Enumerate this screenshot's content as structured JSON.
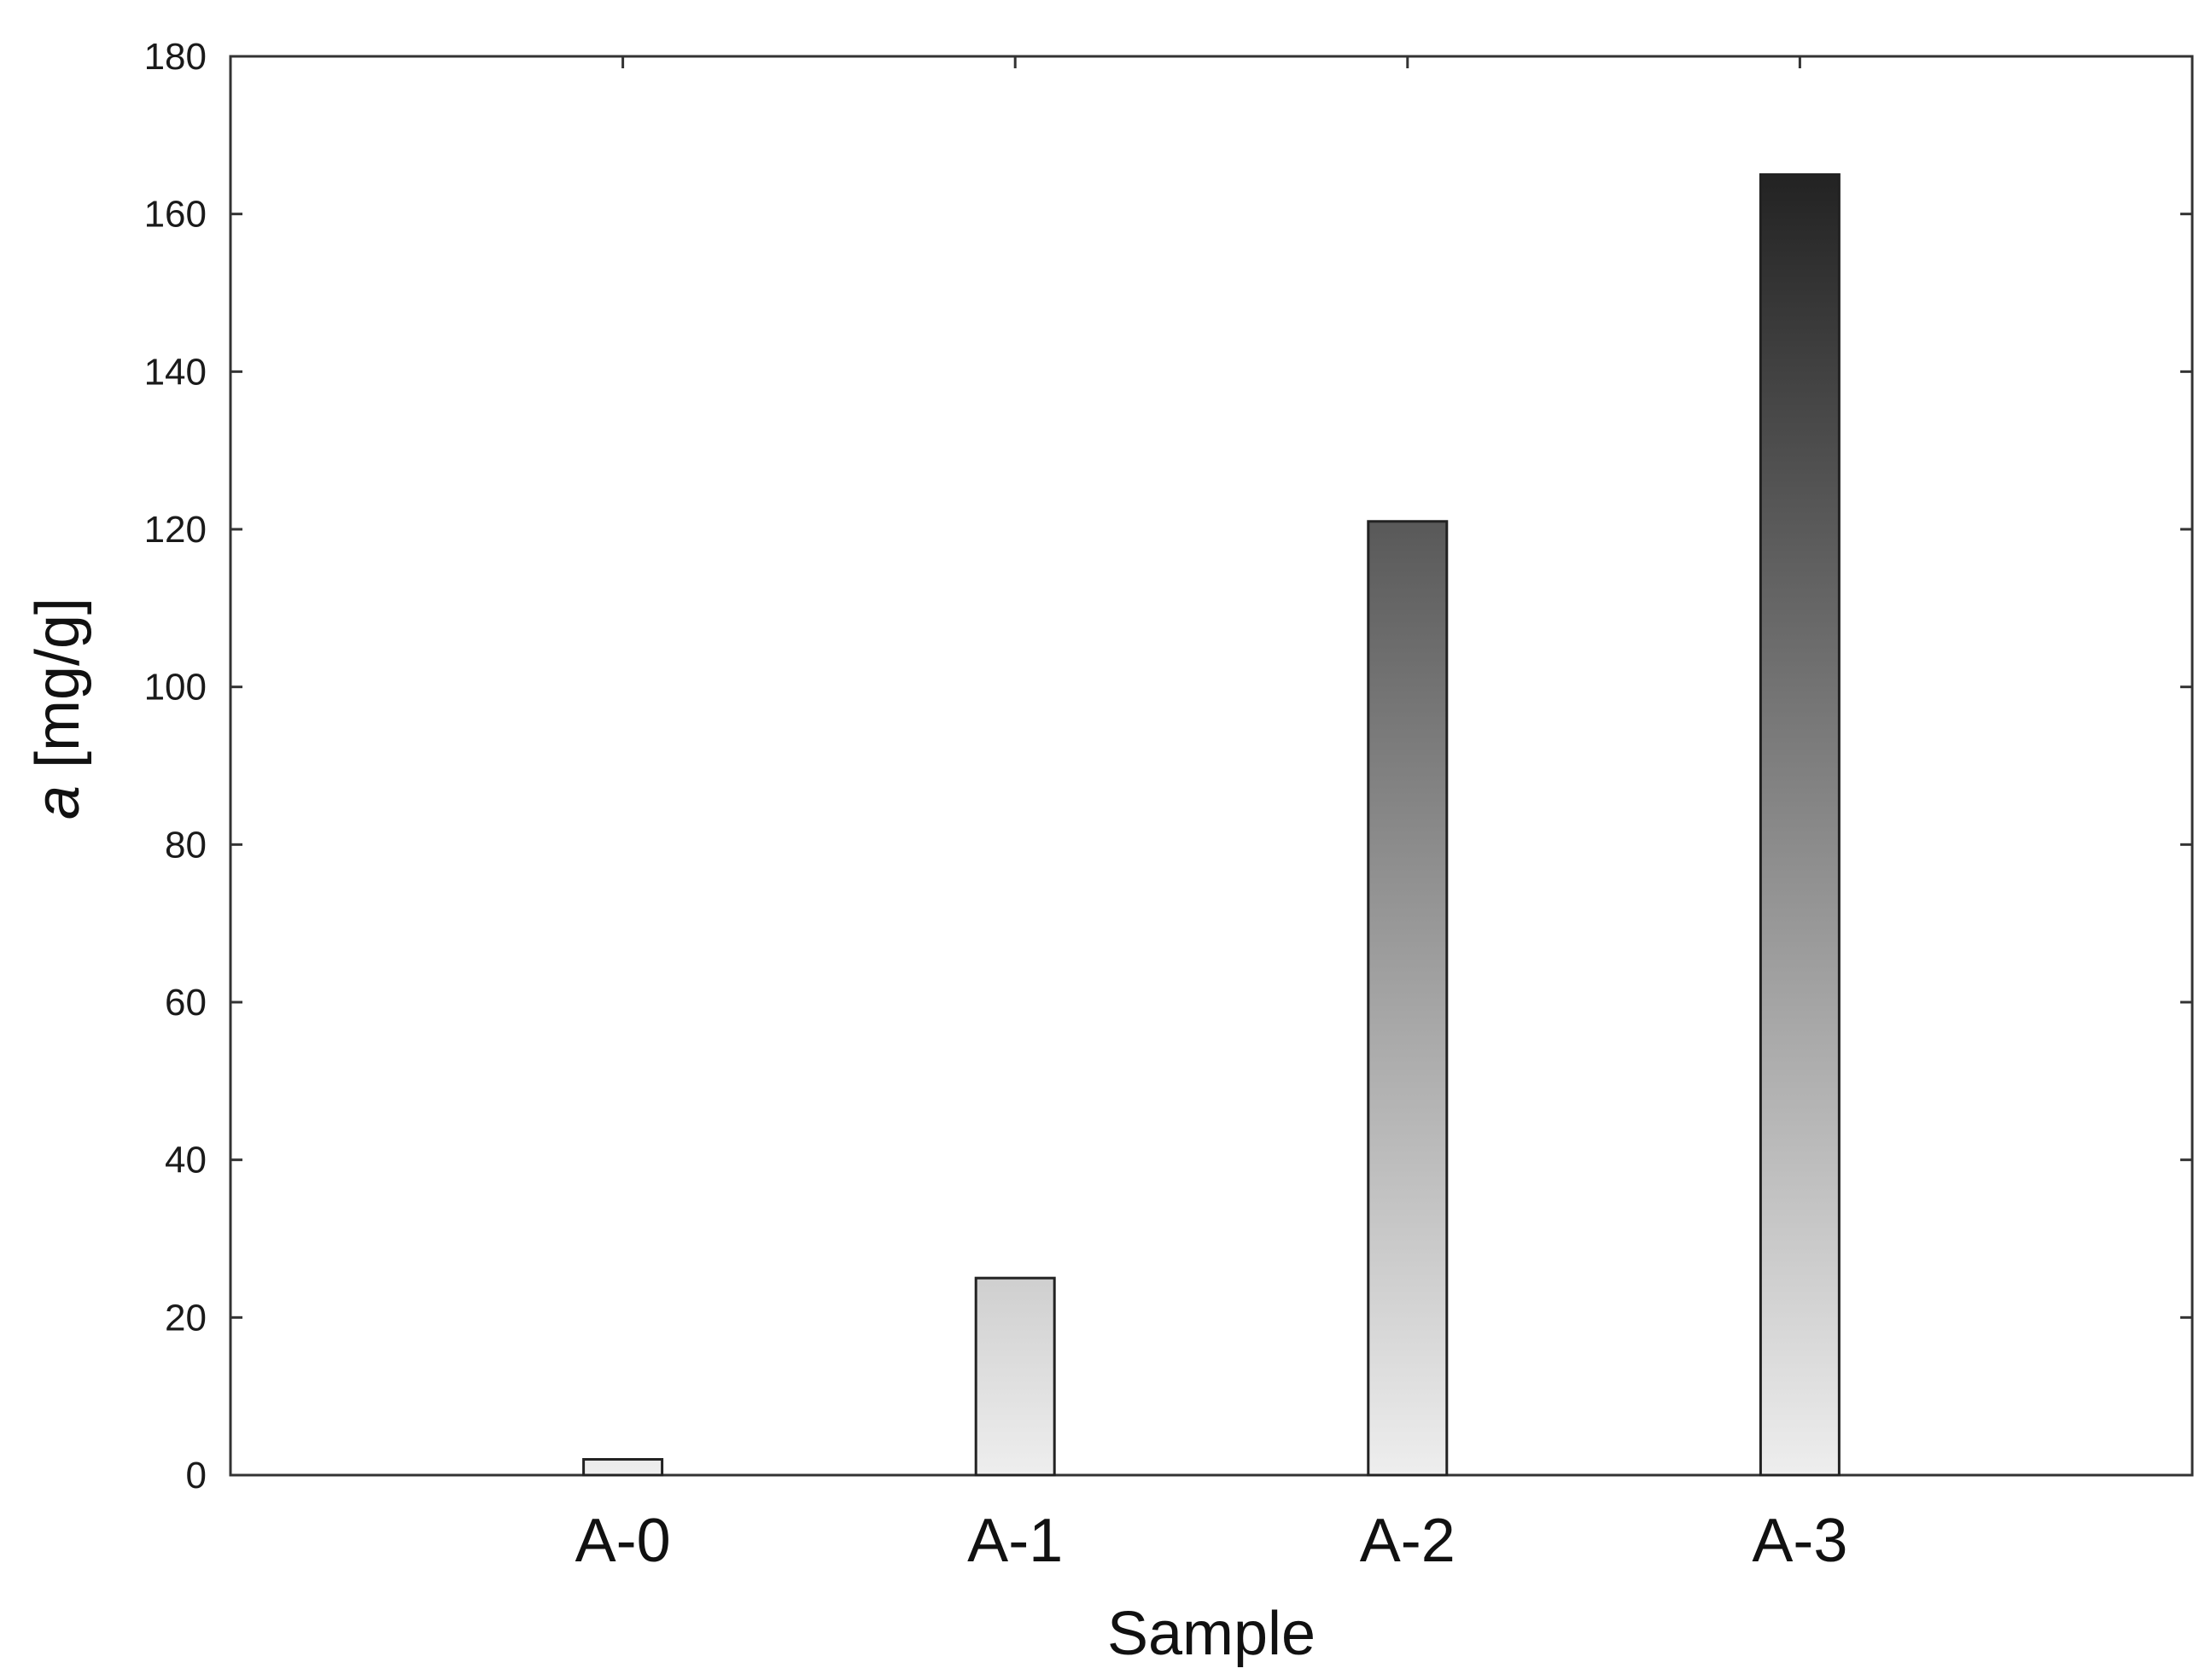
{
  "chart_data": {
    "type": "bar",
    "categories": [
      "A-0",
      "A-1",
      "A-2",
      "A-3"
    ],
    "values": [
      2,
      25,
      121,
      165
    ],
    "title": "",
    "xlabel": "Sample",
    "ylabel": {
      "symbol": "a",
      "unit": " [mg/g]"
    },
    "ylim": [
      0,
      180
    ],
    "yticks": [
      0,
      20,
      40,
      60,
      80,
      100,
      120,
      140,
      160,
      180
    ],
    "xlim": [
      -1,
      4
    ],
    "grid": false,
    "legend": "none",
    "bar_fill": "vertical-gradient",
    "colors": {
      "gradient_low": "#eeeeee",
      "gradient_high": "#101010",
      "bar_stroke": "#222222",
      "axis": "#333333"
    }
  }
}
